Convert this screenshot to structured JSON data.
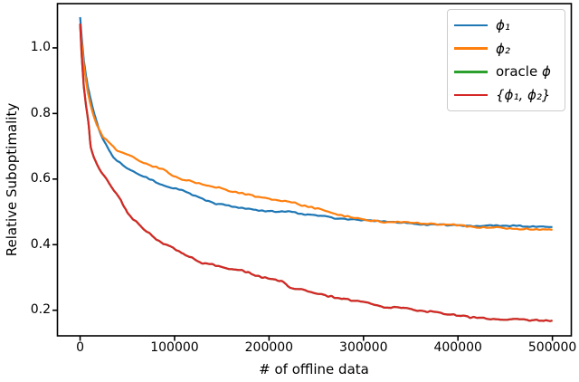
{
  "chart_data": {
    "type": "line",
    "title": "",
    "xlabel": "# of offline data",
    "ylabel": "Relative Suboptimality",
    "xlim": [
      -24000,
      520000
    ],
    "ylim": [
      0.122,
      1.135
    ],
    "grid": false,
    "legend_position": "upper right",
    "xticks": [
      0,
      100000,
      200000,
      300000,
      400000,
      500000
    ],
    "xtick_labels": [
      "0",
      "100000",
      "200000",
      "300000",
      "400000",
      "500000"
    ],
    "yticks": [
      0.2,
      0.4,
      0.6,
      0.8,
      1.0
    ],
    "ytick_labels": [
      "0.2",
      "0.4",
      "0.6",
      "0.8",
      "1.0"
    ],
    "legend": {
      "entries": [
        {
          "label": "ϕ₁",
          "pre": "",
          "math": "ϕ₁",
          "color": "#1f77b4"
        },
        {
          "label": "ϕ₂",
          "pre": "",
          "math": "ϕ₂",
          "color": "#ff7f0e"
        },
        {
          "label": "oracle ϕ",
          "pre": "oracle ",
          "math": "ϕ",
          "color": "#2ca02c"
        },
        {
          "label": "{ϕ₁, ϕ₂}",
          "pre": "",
          "math": "{ϕ₁, ϕ₂}",
          "color": "#d62728"
        }
      ]
    },
    "series": [
      {
        "name": "ϕ₁",
        "color": "#1f77b4",
        "seed": 11,
        "jitter": 0.0035,
        "x": [
          0,
          2000,
          4000,
          6000,
          8000,
          11000,
          14000,
          17000,
          20000,
          24000,
          30000,
          35000,
          40000,
          45000,
          49000,
          55000,
          62000,
          68000,
          75000,
          82000,
          88000,
          95000,
          100000,
          107000,
          113000,
          120000,
          126000,
          133000,
          140000,
          145000,
          152000,
          158000,
          164000,
          172000,
          180000,
          184000,
          195000,
          205000,
          215000,
          222000,
          235000,
          250000,
          260000,
          270000,
          285000,
          300000,
          318000,
          335000,
          350000,
          366000,
          382000,
          400000,
          414000,
          430000,
          445000,
          460000,
          475000,
          490000,
          500000
        ],
        "v": [
          1.094,
          1.02,
          0.96,
          0.92,
          0.885,
          0.845,
          0.81,
          0.78,
          0.752,
          0.722,
          0.69,
          0.668,
          0.655,
          0.645,
          0.635,
          0.625,
          0.616,
          0.607,
          0.598,
          0.588,
          0.58,
          0.574,
          0.571,
          0.566,
          0.558,
          0.55,
          0.544,
          0.536,
          0.528,
          0.524,
          0.521,
          0.518,
          0.516,
          0.512,
          0.508,
          0.505,
          0.503,
          0.501,
          0.5,
          0.5,
          0.494,
          0.489,
          0.485,
          0.48,
          0.477,
          0.4745,
          0.472,
          0.468,
          0.465,
          0.461,
          0.4605,
          0.4595,
          0.458,
          0.4575,
          0.457,
          0.4565,
          0.456,
          0.4545,
          0.4535
        ]
      },
      {
        "name": "ϕ₂",
        "color": "#ff7f0e",
        "seed": 22,
        "jitter": 0.0045,
        "x": [
          0,
          2000,
          4000,
          6000,
          8000,
          11000,
          14000,
          17000,
          20000,
          24000,
          30000,
          35000,
          40000,
          45000,
          49000,
          55000,
          62000,
          68000,
          75000,
          82000,
          88000,
          95000,
          100000,
          107000,
          113000,
          120000,
          126000,
          133000,
          140000,
          145000,
          152000,
          158000,
          164000,
          172000,
          180000,
          184000,
          195000,
          205000,
          215000,
          222000,
          235000,
          250000,
          260000,
          270000,
          285000,
          300000,
          318000,
          335000,
          350000,
          366000,
          382000,
          400000,
          414000,
          430000,
          445000,
          460000,
          475000,
          490000,
          500000
        ],
        "v": [
          1.07,
          1.005,
          0.945,
          0.905,
          0.868,
          0.828,
          0.797,
          0.772,
          0.752,
          0.73,
          0.711,
          0.698,
          0.687,
          0.681,
          0.676,
          0.668,
          0.657,
          0.648,
          0.641,
          0.634,
          0.629,
          0.618,
          0.61,
          0.601,
          0.596,
          0.591,
          0.588,
          0.582,
          0.577,
          0.574,
          0.569,
          0.564,
          0.56,
          0.555,
          0.55,
          0.547,
          0.542,
          0.537,
          0.533,
          0.53,
          0.521,
          0.51,
          0.502,
          0.494,
          0.485,
          0.477,
          0.47,
          0.4685,
          0.467,
          0.4645,
          0.4615,
          0.4585,
          0.4555,
          0.4525,
          0.451,
          0.4495,
          0.448,
          0.446,
          0.444
        ]
      },
      {
        "name": "oracle ϕ",
        "color": "#2ca02c",
        "seed": 33,
        "jitter": 0.005,
        "x": [
          0,
          2000,
          4000,
          6000,
          9000,
          11000,
          14000,
          18000,
          22000,
          26000,
          30000,
          36000,
          43000,
          50000,
          58000,
          68000,
          78000,
          88000,
          98000,
          107000,
          118000,
          126000,
          136000,
          145000,
          155000,
          164000,
          175000,
          184000,
          195000,
          203000,
          215000,
          222000,
          235000,
          248000,
          260000,
          270000,
          285000,
          300000,
          318000,
          335000,
          350000,
          366000,
          382000,
          400000,
          414000,
          430000,
          445000,
          460000,
          475000,
          490000,
          500000
        ],
        "v": [
          1.074,
          0.96,
          0.88,
          0.83,
          0.77,
          0.7,
          0.672,
          0.645,
          0.625,
          0.61,
          0.593,
          0.565,
          0.537,
          0.497,
          0.475,
          0.447,
          0.425,
          0.401,
          0.392,
          0.373,
          0.362,
          0.346,
          0.341,
          0.335,
          0.329,
          0.324,
          0.318,
          0.31,
          0.3,
          0.295,
          0.285,
          0.272,
          0.263,
          0.252,
          0.245,
          0.238,
          0.231,
          0.224,
          0.211,
          0.207,
          0.203,
          0.197,
          0.191,
          0.184,
          0.178,
          0.176,
          0.174,
          0.172,
          0.17,
          0.169,
          0.167
        ]
      },
      {
        "name": "{ϕ₁, ϕ₂}",
        "color": "#d62728",
        "seed": 33,
        "jitter": 0.005,
        "x": [
          0,
          2000,
          4000,
          6000,
          9000,
          11000,
          14000,
          18000,
          22000,
          26000,
          30000,
          36000,
          43000,
          50000,
          58000,
          68000,
          78000,
          88000,
          98000,
          107000,
          118000,
          126000,
          136000,
          145000,
          155000,
          164000,
          175000,
          184000,
          195000,
          203000,
          215000,
          222000,
          235000,
          248000,
          260000,
          270000,
          285000,
          300000,
          318000,
          335000,
          350000,
          366000,
          382000,
          400000,
          414000,
          430000,
          445000,
          460000,
          475000,
          490000,
          500000
        ],
        "v": [
          1.074,
          0.96,
          0.88,
          0.83,
          0.77,
          0.7,
          0.672,
          0.645,
          0.625,
          0.61,
          0.593,
          0.565,
          0.537,
          0.497,
          0.475,
          0.447,
          0.425,
          0.401,
          0.392,
          0.373,
          0.362,
          0.346,
          0.341,
          0.335,
          0.329,
          0.324,
          0.318,
          0.31,
          0.3,
          0.295,
          0.285,
          0.272,
          0.263,
          0.252,
          0.245,
          0.238,
          0.231,
          0.224,
          0.211,
          0.207,
          0.203,
          0.197,
          0.191,
          0.184,
          0.178,
          0.176,
          0.174,
          0.172,
          0.17,
          0.169,
          0.167
        ]
      }
    ]
  },
  "colors": {
    "axis": "#000000",
    "background": "#ffffff",
    "legend_border": "#cccccc"
  }
}
